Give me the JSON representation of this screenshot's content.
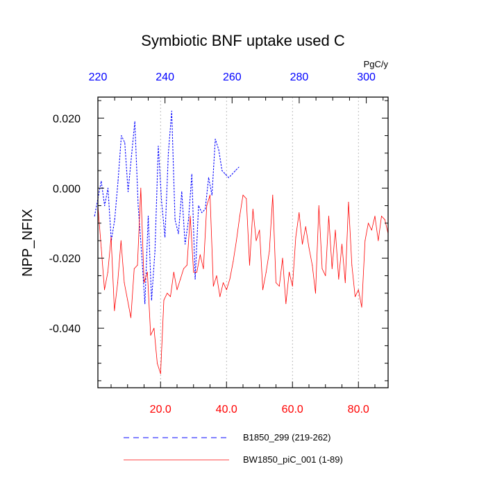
{
  "chart_data": {
    "type": "line",
    "title": "Symbiotic BNF uptake used C",
    "ylabel": "NPP_NFIX",
    "top_axis_unit": "PgC/y",
    "xlim": [
      1,
      89
    ],
    "top_xlim": [
      220,
      306.5
    ],
    "ylim": [
      -0.057,
      0.026
    ],
    "bottom_ticks": [
      "20.0",
      "40.0",
      "60.0",
      "80.0"
    ],
    "bottom_tick_values": [
      20,
      40,
      60,
      80
    ],
    "top_ticks": [
      "220",
      "240",
      "260",
      "280",
      "300"
    ],
    "top_tick_values": [
      220,
      240,
      260,
      280,
      300
    ],
    "y_ticks": [
      "0.020",
      "0.000",
      "-0.020",
      "-0.040"
    ],
    "y_tick_values": [
      0.02,
      0.0,
      -0.02,
      -0.04
    ],
    "grid": "vertical dotted at bottom ticks",
    "colors": {
      "bottom_axis": "#ff0000",
      "top_axis": "#0000ff",
      "series1": "#0000ff",
      "series2": "#ff0000"
    },
    "series": [
      {
        "name": "B1850_299 (219-262)",
        "axis": "top",
        "style": "dashed",
        "x": [
          219,
          220,
          221,
          222,
          223,
          224,
          225,
          226,
          227,
          228,
          229,
          230,
          231,
          232,
          233,
          234,
          235,
          236,
          237,
          238,
          239,
          240,
          241,
          242,
          243,
          244,
          245,
          246,
          247,
          248,
          249,
          250,
          251,
          252,
          253,
          254,
          255,
          256,
          257,
          258,
          259,
          260,
          261,
          262
        ],
        "values": [
          -0.008,
          -0.003,
          0.002,
          -0.005,
          0.0,
          -0.015,
          -0.009,
          0.002,
          0.015,
          0.013,
          -0.001,
          0.009,
          0.019,
          -0.005,
          -0.018,
          -0.033,
          -0.008,
          -0.032,
          -0.018,
          0.012,
          -0.004,
          -0.014,
          0.01,
          0.022,
          -0.009,
          -0.013,
          -0.001,
          -0.016,
          -0.009,
          0.004,
          -0.026,
          -0.005,
          -0.007,
          -0.006,
          0.003,
          -0.002,
          0.014,
          0.011,
          0.005,
          0.004,
          0.003,
          0.004,
          0.005,
          0.006
        ]
      },
      {
        "name": "BW1850_piC_001 (1-89)",
        "axis": "bottom",
        "style": "solid",
        "x": [
          1,
          2,
          3,
          4,
          5,
          6,
          7,
          8,
          9,
          10,
          11,
          12,
          13,
          14,
          15,
          16,
          17,
          18,
          19,
          20,
          21,
          22,
          23,
          24,
          25,
          26,
          27,
          28,
          29,
          30,
          31,
          32,
          33,
          34,
          35,
          36,
          37,
          38,
          39,
          40,
          41,
          42,
          43,
          44,
          45,
          46,
          47,
          48,
          49,
          50,
          51,
          52,
          53,
          54,
          55,
          56,
          57,
          58,
          59,
          60,
          61,
          62,
          63,
          64,
          65,
          66,
          67,
          68,
          69,
          70,
          71,
          72,
          73,
          74,
          75,
          76,
          77,
          78,
          79,
          80,
          81,
          82,
          83,
          84,
          85,
          86,
          87,
          88,
          89
        ],
        "values": [
          -0.005,
          -0.017,
          -0.029,
          -0.024,
          -0.014,
          -0.035,
          -0.027,
          -0.015,
          -0.027,
          -0.032,
          -0.037,
          -0.023,
          -0.022,
          0.0,
          -0.027,
          -0.024,
          -0.042,
          -0.04,
          -0.05,
          -0.053,
          -0.032,
          -0.03,
          -0.031,
          -0.024,
          -0.029,
          -0.026,
          -0.023,
          -0.022,
          -0.008,
          -0.024,
          -0.024,
          -0.019,
          -0.023,
          -0.005,
          -0.002,
          -0.028,
          -0.025,
          -0.031,
          -0.027,
          -0.029,
          -0.026,
          -0.021,
          -0.015,
          -0.008,
          -0.002,
          -0.003,
          -0.022,
          -0.006,
          -0.015,
          -0.012,
          -0.029,
          -0.024,
          -0.018,
          -0.002,
          -0.027,
          -0.028,
          -0.02,
          -0.033,
          -0.024,
          -0.028,
          -0.014,
          -0.007,
          -0.016,
          -0.011,
          -0.017,
          -0.022,
          -0.03,
          -0.005,
          -0.023,
          -0.025,
          -0.008,
          -0.023,
          -0.012,
          -0.026,
          -0.016,
          -0.027,
          -0.004,
          -0.022,
          -0.031,
          -0.029,
          -0.034,
          -0.015,
          -0.01,
          -0.012,
          -0.008,
          -0.015,
          -0.008,
          -0.009,
          -0.013
        ]
      }
    ]
  }
}
